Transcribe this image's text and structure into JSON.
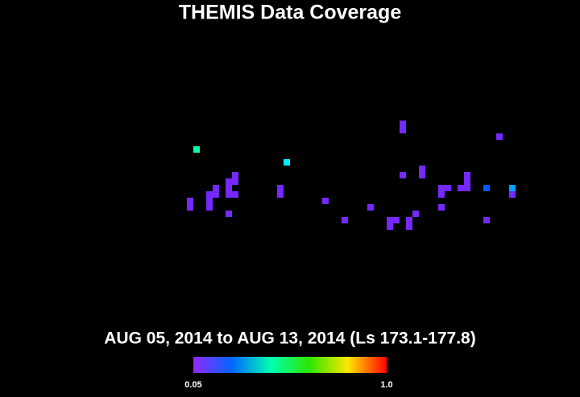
{
  "chart_data": {
    "type": "heatmap",
    "title": "THEMIS Data Coverage",
    "subtitle": "AUG 05, 2014 to AUG 13, 2014 (Ls 173.1-177.8)",
    "x": [
      68,
      68,
      -60,
      -4,
      128,
      80,
      80,
      68,
      108,
      108,
      108,
      -36,
      -36,
      -36,
      -40,
      -40,
      -40,
      -48,
      -48,
      -52,
      -52,
      -52,
      -64,
      -64,
      -40,
      -8,
      -8,
      20,
      48,
      32,
      60,
      60,
      64,
      76,
      72,
      72,
      92,
      92,
      92,
      96,
      104,
      120,
      136,
      136,
      120
    ],
    "y": [
      55,
      51,
      39,
      31,
      47,
      27,
      23,
      23,
      23,
      19,
      15,
      23,
      19,
      11,
      19,
      15,
      11,
      15,
      11,
      11,
      7,
      3,
      7,
      3,
      -1,
      15,
      11,
      7,
      3,
      -5,
      -5,
      -9,
      -5,
      -1,
      -5,
      -9,
      15,
      11,
      3,
      15,
      15,
      15,
      15,
      11,
      -5
    ],
    "values": [
      0.08,
      0.08,
      0.44,
      0.35,
      0.08,
      0.08,
      0.08,
      0.08,
      0.08,
      0.08,
      0.08,
      0.08,
      0.08,
      0.08,
      0.08,
      0.08,
      0.08,
      0.08,
      0.08,
      0.08,
      0.08,
      0.08,
      0.08,
      0.08,
      0.08,
      0.08,
      0.08,
      0.08,
      0.08,
      0.08,
      0.08,
      0.08,
      0.08,
      0.08,
      0.08,
      0.08,
      0.08,
      0.08,
      0.08,
      0.08,
      0.08,
      0.23,
      0.29,
      0.08,
      0.08
    ],
    "xlim": [
      -180,
      180
    ],
    "ylim": [
      -90,
      90
    ],
    "colorbar": {
      "min": {
        "value": 0.05,
        "label": "0.05"
      },
      "max": {
        "value": 1.0,
        "label": "1.0"
      }
    }
  }
}
